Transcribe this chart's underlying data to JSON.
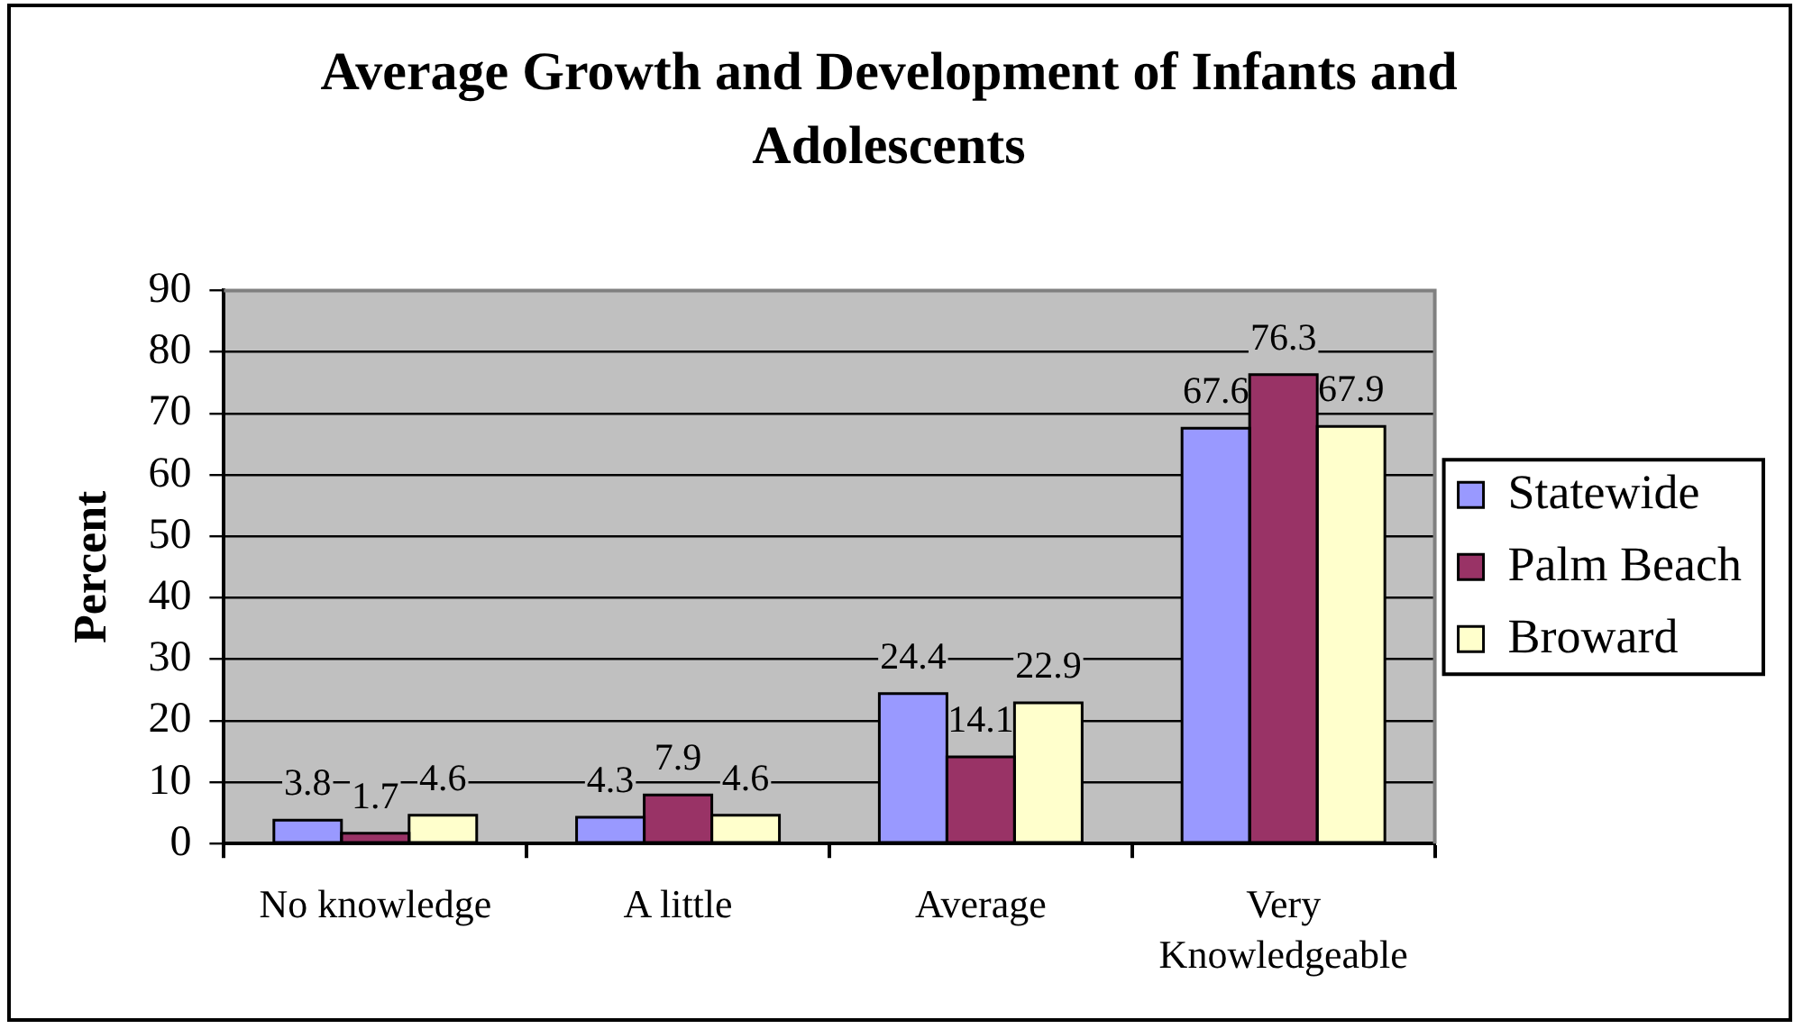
{
  "chart_data": {
    "type": "bar",
    "title": "Average Growth and Development of Infants and Adolescents",
    "ylabel": "Percent",
    "categories": [
      "No knowledge",
      "A little",
      "Average",
      "Very Knowledgeable"
    ],
    "series": [
      {
        "name": "Statewide",
        "color": "#9999ff",
        "values": [
          3.8,
          4.3,
          24.4,
          67.6
        ]
      },
      {
        "name": "Palm Beach",
        "color": "#993366",
        "values": [
          1.7,
          7.9,
          14.1,
          76.3
        ]
      },
      {
        "name": "Broward",
        "color": "#ffffcc",
        "values": [
          4.6,
          4.6,
          22.9,
          67.9
        ]
      }
    ],
    "ylim": [
      0,
      90
    ],
    "yticks": [
      0,
      10,
      20,
      30,
      40,
      50,
      60,
      70,
      80,
      90
    ],
    "grid": "y",
    "legend": "right",
    "data_labels": true
  }
}
